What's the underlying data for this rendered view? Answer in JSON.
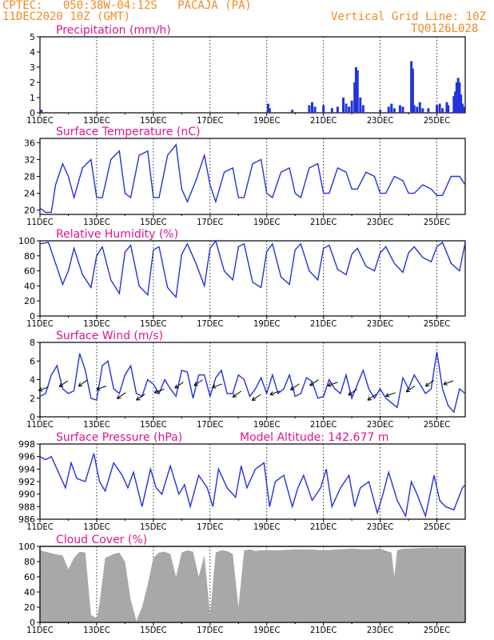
{
  "header": {
    "location": "CPTEC:   050:38W-04:12S   PACAJA (PA)",
    "run": "11DEC2020 10Z (GMT)",
    "grid_note": "Vertical Grid Line: 10Z",
    "code": "TQ0126L028"
  },
  "colors": {
    "header": "#f08a24",
    "panel_title": "#e0158c",
    "series": "#2233dd",
    "cloud": "#a8a8a8",
    "wind_arrow": "#000000"
  },
  "chart_data": [
    {
      "id": "precip",
      "type": "bar",
      "title": "Precipitation (mm/h)",
      "unit": "mm/h",
      "ylim": [
        0,
        5
      ],
      "yticks": [
        0,
        1,
        2,
        3,
        4,
        5
      ],
      "x_range_days": [
        0,
        15
      ],
      "x_tick_labels": [
        "11DEC",
        "13DEC",
        "15DEC",
        "17DEC",
        "19DEC",
        "21DEC",
        "23DEC",
        "25DEC"
      ],
      "x_tick_days": [
        0,
        2,
        4,
        6,
        8,
        10,
        12,
        14
      ],
      "bars": [
        [
          0.05,
          0.2
        ],
        [
          8.05,
          0.6
        ],
        [
          8.1,
          0.3
        ],
        [
          8.9,
          0.2
        ],
        [
          9.5,
          0.5
        ],
        [
          9.6,
          0.7
        ],
        [
          9.7,
          0.4
        ],
        [
          10,
          0.5
        ],
        [
          10.3,
          0.3
        ],
        [
          10.5,
          0.4
        ],
        [
          10.7,
          1.0
        ],
        [
          10.8,
          0.6
        ],
        [
          10.9,
          0.4
        ],
        [
          11.0,
          0.8
        ],
        [
          11.1,
          2.0
        ],
        [
          11.15,
          3.0
        ],
        [
          11.2,
          2.8
        ],
        [
          11.3,
          1.0
        ],
        [
          11.4,
          0.5
        ],
        [
          12.0,
          0.2
        ],
        [
          12.3,
          0.4
        ],
        [
          12.4,
          0.6
        ],
        [
          12.5,
          0.3
        ],
        [
          12.7,
          0.5
        ],
        [
          12.8,
          0.4
        ],
        [
          13.1,
          3.4
        ],
        [
          13.15,
          2.9
        ],
        [
          13.2,
          0.5
        ],
        [
          13.3,
          0.4
        ],
        [
          13.4,
          0.7
        ],
        [
          13.5,
          0.3
        ],
        [
          13.7,
          0.3
        ],
        [
          14.0,
          0.5
        ],
        [
          14.1,
          0.6
        ],
        [
          14.2,
          0.3
        ],
        [
          14.35,
          0.7
        ],
        [
          14.4,
          0.5
        ],
        [
          14.6,
          1.1
        ],
        [
          14.65,
          1.4
        ],
        [
          14.7,
          2.0
        ],
        [
          14.75,
          2.3
        ],
        [
          14.8,
          2.0
        ],
        [
          14.85,
          1.2
        ],
        [
          14.9,
          0.6
        ],
        [
          14.95,
          0.4
        ]
      ]
    },
    {
      "id": "temperature",
      "type": "line",
      "title": "Surface Temperature (nC)",
      "unit": "nC",
      "ylim": [
        19,
        37
      ],
      "yticks": [
        20,
        24,
        28,
        32,
        36
      ],
      "x_range_days": [
        0,
        15
      ],
      "x_tick_labels": [
        "11DEC",
        "13DEC",
        "15DEC",
        "17DEC",
        "19DEC",
        "21DEC",
        "23DEC",
        "25DEC"
      ],
      "x_tick_days": [
        0,
        2,
        4,
        6,
        8,
        10,
        12,
        14
      ],
      "x": [
        0,
        0.2,
        0.4,
        0.55,
        0.8,
        1.0,
        1.2,
        1.5,
        1.8,
        2.0,
        2.2,
        2.5,
        2.8,
        3.0,
        3.2,
        3.5,
        3.8,
        4.0,
        4.2,
        4.5,
        4.8,
        5.0,
        5.2,
        5.5,
        5.8,
        6.0,
        6.2,
        6.5,
        6.8,
        7.0,
        7.2,
        7.5,
        7.8,
        8.0,
        8.2,
        8.5,
        8.8,
        9.0,
        9.2,
        9.5,
        9.8,
        10.0,
        10.2,
        10.5,
        10.8,
        11.0,
        11.2,
        11.5,
        11.8,
        12.0,
        12.2,
        12.5,
        12.8,
        13.0,
        13.2,
        13.5,
        13.8,
        14.0,
        14.2,
        14.5,
        14.8,
        15.0
      ],
      "values": [
        20.5,
        19.5,
        19.5,
        26,
        31,
        28,
        23,
        30,
        32,
        23,
        23,
        32,
        34,
        24,
        23,
        33,
        34,
        23,
        23,
        33,
        35.5,
        25,
        22,
        27,
        33,
        26,
        22,
        29,
        30,
        23,
        23,
        31,
        32,
        24,
        23,
        29,
        30,
        24,
        23,
        30,
        31,
        24,
        24,
        30,
        29,
        25,
        25,
        29,
        28,
        24,
        24,
        28,
        27,
        24,
        24,
        26,
        25,
        23.5,
        23.5,
        28,
        28,
        26
      ]
    },
    {
      "id": "humidity",
      "type": "line",
      "title": "Relative Humidity (%)",
      "unit": "%",
      "ylim": [
        0,
        100
      ],
      "yticks": [
        0,
        20,
        40,
        60,
        80,
        100
      ],
      "x_range_days": [
        0,
        15
      ],
      "x_tick_labels": [
        "11DEC",
        "13DEC",
        "15DEC",
        "17DEC",
        "19DEC",
        "21DEC",
        "23DEC",
        "25DEC"
      ],
      "x_tick_days": [
        0,
        2,
        4,
        6,
        8,
        10,
        12,
        14
      ],
      "x": [
        0,
        0.3,
        0.55,
        0.8,
        1.0,
        1.2,
        1.5,
        1.8,
        2.0,
        2.2,
        2.5,
        2.8,
        3.0,
        3.2,
        3.5,
        3.8,
        4.0,
        4.2,
        4.5,
        4.8,
        5.0,
        5.2,
        5.5,
        5.8,
        6.0,
        6.2,
        6.5,
        6.8,
        7.0,
        7.2,
        7.5,
        7.8,
        8.0,
        8.2,
        8.5,
        8.8,
        9.0,
        9.2,
        9.5,
        9.8,
        10.0,
        10.2,
        10.5,
        10.8,
        11.0,
        11.2,
        11.5,
        11.8,
        12.0,
        12.2,
        12.5,
        12.8,
        13.0,
        13.2,
        13.5,
        13.8,
        14.0,
        14.2,
        14.5,
        14.8,
        15.0
      ],
      "values": [
        96,
        98,
        70,
        42,
        60,
        90,
        55,
        38,
        80,
        92,
        48,
        30,
        85,
        94,
        40,
        28,
        88,
        92,
        38,
        25,
        82,
        96,
        70,
        40,
        90,
        100,
        60,
        48,
        92,
        96,
        45,
        38,
        86,
        96,
        52,
        42,
        88,
        96,
        60,
        48,
        90,
        94,
        62,
        55,
        82,
        90,
        66,
        60,
        84,
        92,
        70,
        58,
        84,
        92,
        78,
        72,
        92,
        98,
        70,
        60,
        98
      ]
    },
    {
      "id": "wind",
      "type": "line",
      "title": "Surface Wind (m/s)",
      "unit": "m/s",
      "ylim": [
        0,
        8
      ],
      "yticks": [
        0,
        2,
        4,
        6,
        8
      ],
      "x_range_days": [
        0,
        15
      ],
      "x_tick_labels": [
        "11DEC",
        "13DEC",
        "15DEC",
        "17DEC",
        "19DEC",
        "21DEC",
        "23DEC",
        "25DEC"
      ],
      "x_tick_days": [
        0,
        2,
        4,
        6,
        8,
        10,
        12,
        14
      ],
      "x": [
        0,
        0.2,
        0.4,
        0.6,
        0.8,
        1.0,
        1.2,
        1.4,
        1.6,
        1.8,
        2.0,
        2.2,
        2.4,
        2.6,
        2.8,
        3.0,
        3.2,
        3.4,
        3.6,
        3.8,
        4.0,
        4.2,
        4.4,
        4.6,
        4.8,
        5.0,
        5.2,
        5.4,
        5.6,
        5.8,
        6.0,
        6.2,
        6.4,
        6.6,
        6.8,
        7.0,
        7.2,
        7.4,
        7.6,
        7.8,
        8.0,
        8.2,
        8.4,
        8.6,
        8.8,
        9.0,
        9.2,
        9.4,
        9.6,
        9.8,
        10.0,
        10.2,
        10.4,
        10.6,
        10.8,
        11.0,
        11.2,
        11.4,
        11.6,
        11.8,
        12.0,
        12.2,
        12.4,
        12.6,
        12.8,
        13.0,
        13.2,
        13.4,
        13.6,
        13.8,
        14.0,
        14.2,
        14.4,
        14.6,
        14.8,
        15.0
      ],
      "values": [
        2.2,
        2.5,
        4.5,
        5.5,
        3.0,
        2.5,
        2.8,
        6.8,
        5.0,
        2.0,
        1.8,
        5.5,
        6.0,
        3.0,
        2.5,
        4.5,
        5.5,
        2.5,
        2.2,
        4.0,
        3.5,
        2.5,
        4.0,
        3.0,
        2.2,
        5.0,
        4.8,
        2.0,
        4.5,
        4.5,
        2.2,
        4.2,
        5.0,
        2.5,
        2.5,
        4.5,
        4.0,
        2.2,
        3.0,
        4.2,
        2.5,
        4.5,
        2.5,
        3.0,
        4.5,
        2.2,
        2.5,
        4.2,
        3.8,
        2.0,
        2.2,
        4.0,
        3.0,
        2.5,
        4.5,
        2.0,
        3.5,
        5.0,
        3.0,
        2.0,
        3.0,
        2.0,
        1.5,
        1.0,
        4.2,
        3.0,
        4.5,
        3.5,
        2.5,
        3.0,
        7.0,
        3.0,
        1.2,
        0.5,
        3.0,
        2.5
      ]
    },
    {
      "id": "pressure",
      "type": "line",
      "title": "Surface Pressure (hPa)",
      "subtitle": "Model Altitude: 142.677 m",
      "unit": "hPa",
      "ylim": [
        986,
        998
      ],
      "yticks": [
        986,
        988,
        990,
        992,
        994,
        996,
        998
      ],
      "x_range_days": [
        0,
        15
      ],
      "x_tick_labels": [
        "11DEC",
        "13DEC",
        "15DEC",
        "17DEC",
        "19DEC",
        "21DEC",
        "23DEC",
        "25DEC"
      ],
      "x_tick_days": [
        0,
        2,
        4,
        6,
        8,
        10,
        12,
        14
      ],
      "x": [
        0,
        0.2,
        0.4,
        0.6,
        0.9,
        1.1,
        1.3,
        1.6,
        1.9,
        2.1,
        2.3,
        2.6,
        2.9,
        3.1,
        3.3,
        3.6,
        3.9,
        4.1,
        4.3,
        4.6,
        4.9,
        5.1,
        5.3,
        5.6,
        5.9,
        6.1,
        6.3,
        6.6,
        6.9,
        7.1,
        7.3,
        7.6,
        7.9,
        8.1,
        8.3,
        8.6,
        8.9,
        9.1,
        9.3,
        9.6,
        9.9,
        10.1,
        10.3,
        10.6,
        10.9,
        11.1,
        11.3,
        11.6,
        11.9,
        12.1,
        12.3,
        12.6,
        12.9,
        13.1,
        13.3,
        13.6,
        13.9,
        14.1,
        14.3,
        14.6,
        14.9,
        15.0
      ],
      "values": [
        996,
        995.5,
        996,
        994,
        991,
        995,
        992.5,
        992,
        996.5,
        992,
        990.5,
        995,
        993,
        991,
        993.5,
        988,
        994,
        991,
        990,
        994.5,
        990,
        991.5,
        988,
        993,
        991,
        988,
        994,
        991,
        989.5,
        994.5,
        991,
        994,
        995,
        988,
        992,
        993,
        988,
        991,
        993,
        989,
        991,
        994,
        988,
        991,
        993,
        988,
        991,
        992,
        987,
        990,
        993.5,
        989,
        986.5,
        992,
        990,
        986.5,
        993,
        989,
        988,
        987.5,
        991,
        991.5
      ]
    },
    {
      "id": "cloud",
      "type": "area",
      "title": "Cloud Cover (%)",
      "unit": "%",
      "ylim": [
        0,
        100
      ],
      "yticks": [
        0,
        20,
        40,
        60,
        80,
        100
      ],
      "x_range_days": [
        0,
        15
      ],
      "x_tick_labels": [
        "11DEC",
        "13DEC",
        "15DEC",
        "17DEC",
        "19DEC",
        "21DEC",
        "23DEC",
        "25DEC"
      ],
      "x_tick_days": [
        0,
        2,
        4,
        6,
        8,
        10,
        12,
        14
      ],
      "x": [
        0,
        0.3,
        0.5,
        0.8,
        1.0,
        1.2,
        1.4,
        1.6,
        1.8,
        2.0,
        2.1,
        2.3,
        2.6,
        2.8,
        3.0,
        3.2,
        3.4,
        3.6,
        3.8,
        4.0,
        4.2,
        4.4,
        4.6,
        4.8,
        5.0,
        5.2,
        5.4,
        5.6,
        5.8,
        6.0,
        6.2,
        6.4,
        6.6,
        6.8,
        7.0,
        7.2,
        7.4,
        7.6,
        7.8,
        8.0,
        8.5,
        9.0,
        9.5,
        10.0,
        10.5,
        11.0,
        11.5,
        12.0,
        12.4,
        12.5,
        12.6,
        12.8,
        13.0,
        13.5,
        14.0,
        14.5,
        15.0
      ],
      "values": [
        95,
        92,
        90,
        88,
        70,
        85,
        93,
        92,
        10,
        5,
        25,
        85,
        90,
        92,
        80,
        30,
        2,
        20,
        50,
        85,
        92,
        93,
        90,
        60,
        92,
        95,
        93,
        60,
        88,
        10,
        92,
        95,
        94,
        90,
        20,
        95,
        96,
        94,
        95,
        95,
        95,
        96,
        96,
        95,
        96,
        97,
        96,
        97,
        92,
        60,
        95,
        97,
        97,
        98,
        98,
        98,
        98
      ]
    }
  ]
}
